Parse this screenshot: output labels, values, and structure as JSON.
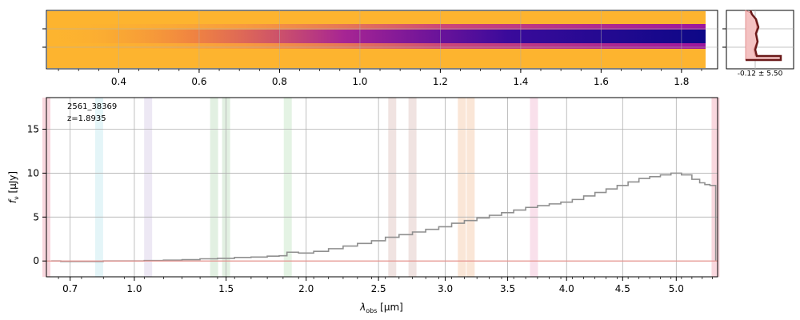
{
  "chart_data": [
    {
      "type": "heatmap",
      "description_role": "2D spectrum",
      "colormap": "plasma (inverted)",
      "x_scale": "spectral-pixel",
      "xticks": [
        0.4,
        0.6,
        0.8,
        1.0,
        1.2,
        1.4,
        1.6,
        1.8
      ],
      "xtick_labels": [
        "0.4",
        "0.6",
        "0.8",
        "1.0",
        "1.2",
        "1.4",
        "1.6",
        "1.8"
      ],
      "xlim": [
        0.22,
        1.86
      ],
      "grid": true,
      "trace_peak_intensity_profile": [
        {
          "x": 0.45,
          "v": 0.1
        },
        {
          "x": 0.6,
          "v": 0.18
        },
        {
          "x": 0.8,
          "v": 0.3
        },
        {
          "x": 1.0,
          "v": 0.45
        },
        {
          "x": 1.2,
          "v": 0.62
        },
        {
          "x": 1.4,
          "v": 0.78
        },
        {
          "x": 1.6,
          "v": 0.92
        },
        {
          "x": 1.8,
          "v": 1.0
        }
      ]
    },
    {
      "type": "line",
      "description_role": "spatial profile",
      "annotation": "-0.12 ± 5.50",
      "grid": true
    },
    {
      "type": "line",
      "description_role": "1D spectrum",
      "annotation_lines": [
        "2561_38369",
        "z=1.8935"
      ],
      "xlabel_main": "λ",
      "xlabel_sub": "obs",
      "xlabel_unit": " [μm]",
      "ylabel_main": "f",
      "ylabel_sub": "ν",
      "ylabel_unit": " [μJy]",
      "x_scale": "reciprocal-ish",
      "xticks": [
        0.7,
        1.0,
        1.5,
        2.0,
        2.5,
        3.0,
        3.5,
        4.0,
        4.5,
        5.0
      ],
      "xtick_labels": [
        "0.7",
        "1.0",
        "1.5",
        "2.0",
        "2.5",
        "3.0",
        "3.5",
        "4.0",
        "4.5",
        "5.0"
      ],
      "yticks": [
        0,
        5,
        10,
        15
      ],
      "ytick_labels": [
        "0",
        "5",
        "10",
        "15"
      ],
      "ylim": [
        -1.8,
        18.6
      ],
      "xlim": [
        0.6,
        5.4
      ],
      "grid": true,
      "series": [
        {
          "color": "#8f8f8f",
          "x": [
            0.62,
            0.7,
            0.8,
            0.9,
            1.0,
            1.1,
            1.2,
            1.3,
            1.4,
            1.5,
            1.6,
            1.7,
            1.8,
            1.85,
            1.9,
            2.0,
            2.1,
            2.2,
            2.3,
            2.4,
            2.5,
            2.6,
            2.7,
            2.8,
            2.9,
            3.0,
            3.1,
            3.2,
            3.3,
            3.4,
            3.5,
            3.6,
            3.7,
            3.8,
            3.9,
            4.0,
            4.1,
            4.2,
            4.3,
            4.4,
            4.5,
            4.6,
            4.7,
            4.8,
            4.9,
            5.0,
            5.1,
            5.2,
            5.25,
            5.3,
            5.35
          ],
          "y": [
            0.0,
            -0.05,
            -0.05,
            0.0,
            0.0,
            0.05,
            0.1,
            0.15,
            0.25,
            0.3,
            0.4,
            0.45,
            0.55,
            0.6,
            1.0,
            0.9,
            1.1,
            1.4,
            1.7,
            2.0,
            2.3,
            2.7,
            3.0,
            3.3,
            3.6,
            3.9,
            4.3,
            4.6,
            4.9,
            5.2,
            5.5,
            5.8,
            6.1,
            6.3,
            6.5,
            6.7,
            7.0,
            7.4,
            7.8,
            8.2,
            8.6,
            9.0,
            9.4,
            9.6,
            9.8,
            10.0,
            9.8,
            9.3,
            8.9,
            8.7,
            8.6
          ]
        },
        {
          "color": "#e8938f",
          "x": [
            0.6,
            5.4
          ],
          "y": [
            0.0,
            0.0
          ]
        }
      ],
      "vertical_bands": [
        {
          "x": 0.6,
          "color": "#f7c6d0"
        },
        {
          "x": 0.83,
          "color": "#d9f1f5"
        },
        {
          "x": 1.07,
          "color": "#e6def0"
        },
        {
          "x": 1.43,
          "color": "#d5ead5"
        },
        {
          "x": 1.5,
          "color": "#d5ead5"
        },
        {
          "x": 1.88,
          "color": "#d9eed8"
        },
        {
          "x": 2.6,
          "color": "#ead7d4"
        },
        {
          "x": 2.75,
          "color": "#ead7d4"
        },
        {
          "x": 3.13,
          "color": "#f8dcc6"
        },
        {
          "x": 3.2,
          "color": "#f8dcc6"
        },
        {
          "x": 3.72,
          "color": "#f7d3e3"
        },
        {
          "x": 5.38,
          "color": "#f7c6d0"
        }
      ]
    }
  ]
}
